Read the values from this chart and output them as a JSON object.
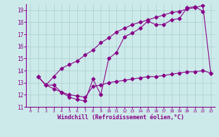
{
  "title": "",
  "xlabel": "Windchill (Refroidissement éolien,°C)",
  "ylabel": "",
  "bg_color": "#cceaea",
  "line_color": "#880088",
  "grid_color": "#aacccc",
  "xlim": [
    -0.5,
    23.5
  ],
  "ylim": [
    11,
    19.5
  ],
  "yticks": [
    11,
    12,
    13,
    14,
    15,
    16,
    17,
    18,
    19
  ],
  "xticks": [
    0,
    1,
    2,
    3,
    4,
    5,
    6,
    7,
    8,
    9,
    10,
    11,
    12,
    13,
    14,
    15,
    16,
    17,
    18,
    19,
    20,
    21,
    22,
    23
  ],
  "line1_x": [
    1,
    2,
    3,
    4,
    5,
    6,
    7,
    8,
    9,
    10,
    11,
    12,
    13,
    14,
    15,
    16,
    17,
    18,
    19,
    20,
    21,
    22
  ],
  "line1_y": [
    13.5,
    12.8,
    12.8,
    12.2,
    11.8,
    11.6,
    11.5,
    13.3,
    12.0,
    15.0,
    15.5,
    16.8,
    17.1,
    17.5,
    18.1,
    17.8,
    17.8,
    18.2,
    18.3,
    19.2,
    19.3,
    18.9
  ],
  "line2_x": [
    1,
    2,
    3,
    4,
    5,
    6,
    7,
    8,
    9,
    10,
    11,
    12,
    13,
    14,
    15,
    16,
    17,
    18,
    19,
    20,
    21,
    22,
    23
  ],
  "line2_y": [
    13.5,
    12.8,
    13.5,
    14.2,
    14.5,
    14.8,
    15.3,
    15.7,
    16.3,
    16.7,
    17.2,
    17.5,
    17.8,
    18.0,
    18.2,
    18.4,
    18.6,
    18.8,
    18.9,
    19.1,
    19.2,
    19.4,
    13.8
  ],
  "line3_x": [
    1,
    2,
    3,
    4,
    5,
    6,
    7,
    8,
    9,
    10,
    11,
    12,
    13,
    14,
    15,
    16,
    17,
    18,
    19,
    20,
    21,
    22,
    23
  ],
  "line3_y": [
    13.5,
    12.8,
    12.5,
    12.2,
    12.0,
    11.9,
    11.8,
    12.7,
    12.8,
    13.0,
    13.1,
    13.2,
    13.3,
    13.4,
    13.5,
    13.5,
    13.6,
    13.7,
    13.8,
    13.9,
    13.9,
    14.0,
    13.8
  ]
}
